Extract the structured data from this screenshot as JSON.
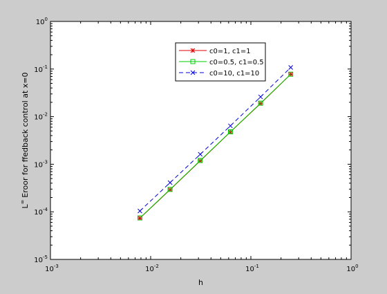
{
  "chart_data": {
    "type": "line",
    "xlabel": "h",
    "ylabel": "Eroor for ffedback control at x=0",
    "ylabel_prefix": "L",
    "ylabel_sup": "∞",
    "xscale": "log",
    "yscale": "log",
    "xlim": [
      0.001,
      1
    ],
    "ylim": [
      1e-05,
      1
    ],
    "x_tick_exponents": [
      -3,
      -2,
      -1,
      0
    ],
    "y_tick_exponents": [
      -5,
      -4,
      -3,
      -2,
      -1,
      0
    ],
    "tick_base": "10",
    "grid": false,
    "legend_position": "top-center",
    "x": [
      0.0078125,
      0.015625,
      0.03125,
      0.0625,
      0.125,
      0.25
    ],
    "series": [
      {
        "name": "c0=1, c1=1",
        "color": "#e00000",
        "dash": "solid",
        "marker": "asterisk",
        "values": [
          7.35e-05,
          0.000292,
          0.00118,
          0.00475,
          0.0189,
          0.0775
        ]
      },
      {
        "name": "c0=0.5, c1=0.5",
        "color": "#00cc00",
        "dash": "solid",
        "marker": "square",
        "values": [
          7.45e-05,
          0.000296,
          0.0012,
          0.0048,
          0.0192,
          0.078
        ]
      },
      {
        "name": "c0=10, c1=10",
        "color": "#0000dd",
        "dash": "dashed",
        "marker": "x",
        "values": [
          0.000104,
          0.00041,
          0.00162,
          0.0064,
          0.026,
          0.108
        ]
      }
    ]
  }
}
